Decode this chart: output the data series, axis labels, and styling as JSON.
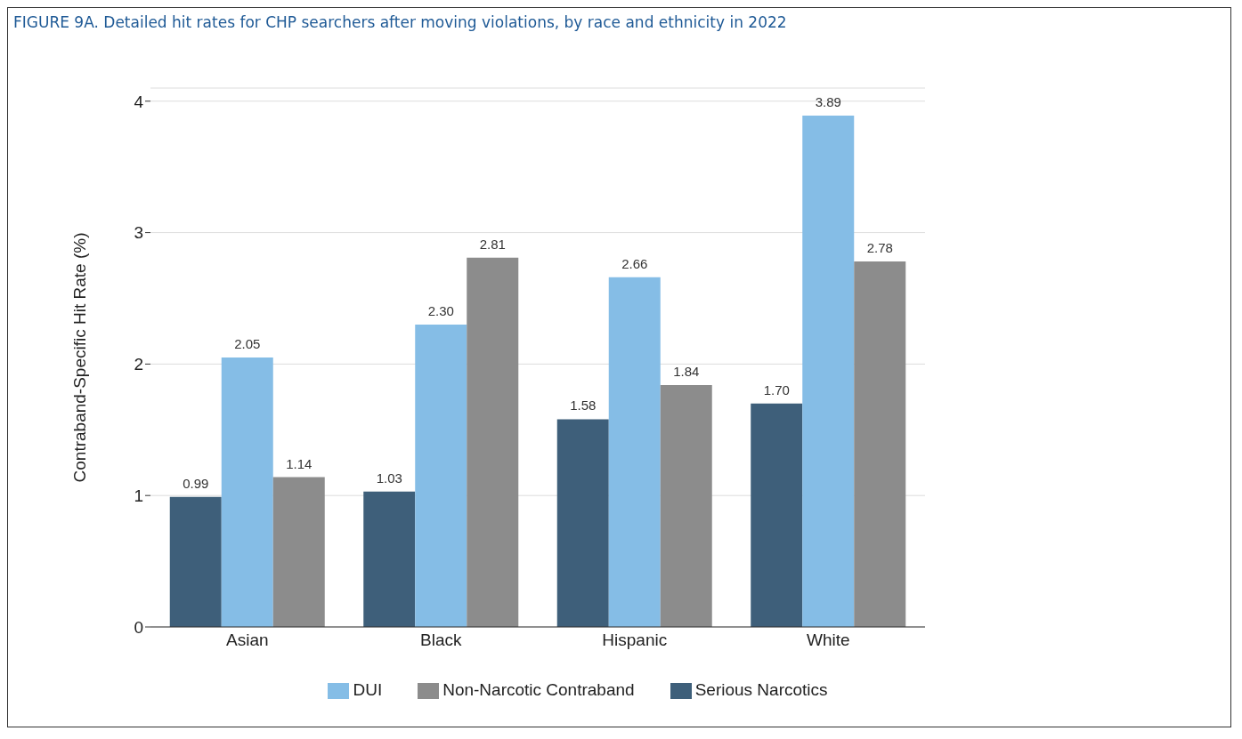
{
  "chart_data": {
    "type": "bar",
    "title": "FIGURE 9A. Detailed hit rates for CHP searchers after moving violations, by race and ethnicity in 2022",
    "ylabel": "Contraband-Specific Hit Rate (%)",
    "categories": [
      "Asian",
      "Black",
      "Hispanic",
      "White"
    ],
    "series": [
      {
        "name": "Serious Narcotics",
        "color": "#3e5f7a",
        "values": [
          0.99,
          1.03,
          1.58,
          1.7
        ],
        "value_labels": [
          "0.99",
          "1.03",
          "1.58",
          "1.70"
        ]
      },
      {
        "name": "DUI",
        "color": "#85bde6",
        "values": [
          2.05,
          2.3,
          2.66,
          3.89
        ],
        "value_labels": [
          "2.05",
          "2.30",
          "2.66",
          "3.89"
        ]
      },
      {
        "name": "Non-Narcotic Contraband",
        "color": "#8c8c8c",
        "values": [
          1.14,
          2.81,
          1.84,
          2.78
        ],
        "value_labels": [
          "1.14",
          "2.81",
          "1.84",
          "2.78"
        ]
      }
    ],
    "ylim": [
      0,
      4.1
    ],
    "yticks": [
      0,
      1,
      2,
      3,
      4
    ],
    "grid": "y",
    "legend": "bottom"
  }
}
